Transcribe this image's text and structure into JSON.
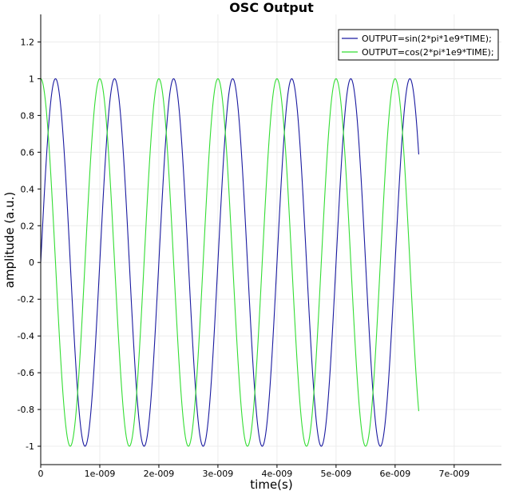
{
  "chart_data": {
    "type": "line",
    "title": "OSC Output",
    "xlabel": "time(s)",
    "ylabel": "amplitude (a.u.)",
    "xlim": [
      0,
      7.8e-09
    ],
    "ylim": [
      -1.1,
      1.35
    ],
    "x_ticks": [
      {
        "value": 0,
        "label": "0"
      },
      {
        "value": 1e-09,
        "label": "1e-009"
      },
      {
        "value": 2e-09,
        "label": "2e-009"
      },
      {
        "value": 3e-09,
        "label": "3e-009"
      },
      {
        "value": 4e-09,
        "label": "4e-009"
      },
      {
        "value": 5e-09,
        "label": "5e-009"
      },
      {
        "value": 6e-09,
        "label": "6e-009"
      },
      {
        "value": 7e-09,
        "label": "7e-009"
      }
    ],
    "y_ticks": [
      {
        "value": 1.2,
        "label": "1.2"
      },
      {
        "value": 1.0,
        "label": "1"
      },
      {
        "value": 0.8,
        "label": "0.8"
      },
      {
        "value": 0.6,
        "label": "0.6"
      },
      {
        "value": 0.4,
        "label": "0.4"
      },
      {
        "value": 0.2,
        "label": "0.2"
      },
      {
        "value": 0.0,
        "label": "0"
      },
      {
        "value": -0.2,
        "label": "-0.2"
      },
      {
        "value": -0.4,
        "label": "-0.4"
      },
      {
        "value": -0.6,
        "label": "-0.6"
      },
      {
        "value": -0.8,
        "label": "-0.8"
      },
      {
        "value": -1.0,
        "label": "-1"
      }
    ],
    "grid": true,
    "legend_position": "top-right",
    "series": [
      {
        "name": "OUTPUT=sin(2*pi*1e9*TIME);",
        "color": "#1a1aa0",
        "frequency_hz": 1000000000.0,
        "function": "sin",
        "x_start": 0,
        "x_end": 6.4e-09
      },
      {
        "name": "OUTPUT=cos(2*pi*1e9*TIME);",
        "color": "#33dd33",
        "frequency_hz": 1000000000.0,
        "function": "cos",
        "x_start": 0,
        "x_end": 6.4e-09
      }
    ]
  }
}
